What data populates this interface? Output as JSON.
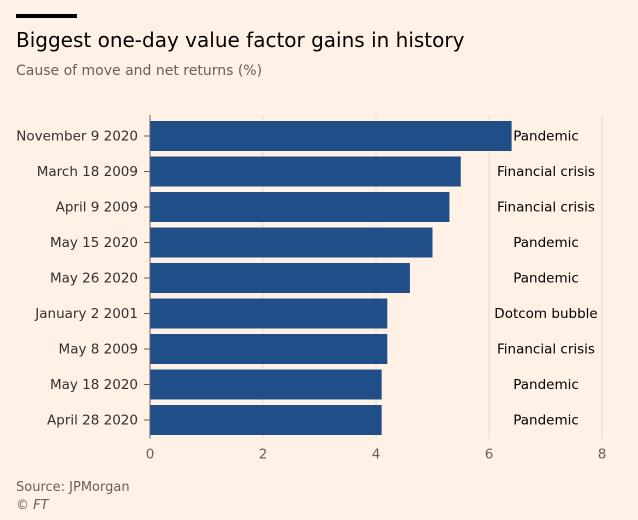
{
  "header": {
    "title": "Biggest one-day value factor gains in history",
    "subtitle": "Cause of move and net returns (%)"
  },
  "footer": {
    "source": "Source: JPMorgan",
    "copyright": "© FT"
  },
  "colors": {
    "background": "#fff1e5",
    "bar": "#1f4e89",
    "grid": "#e7d9cc",
    "text": "#33302e",
    "muted": "#66605c"
  },
  "chart_data": {
    "type": "bar",
    "orientation": "horizontal",
    "title": "Biggest one-day value factor gains in history",
    "subtitle": "Cause of move and net returns (%)",
    "categories": [
      "November 9 2020",
      "March 18 2009",
      "April 9 2009",
      "May 15 2020",
      "May 26 2020",
      "January 2 2001",
      "May 8 2009",
      "May 18 2020",
      "April 28 2020"
    ],
    "values": [
      6.4,
      5.5,
      5.3,
      5.0,
      4.6,
      4.2,
      4.2,
      4.1,
      4.1
    ],
    "annotations": [
      "Pandemic",
      "Financial crisis",
      "Financial crisis",
      "Pandemic",
      "Pandemic",
      "Dotcom bubble",
      "Financial crisis",
      "Pandemic",
      "Pandemic"
    ],
    "xlim": [
      0,
      8
    ],
    "xticks": [
      0,
      2,
      4,
      6,
      8
    ],
    "xlabel": "",
    "ylabel": "",
    "grid": true
  }
}
